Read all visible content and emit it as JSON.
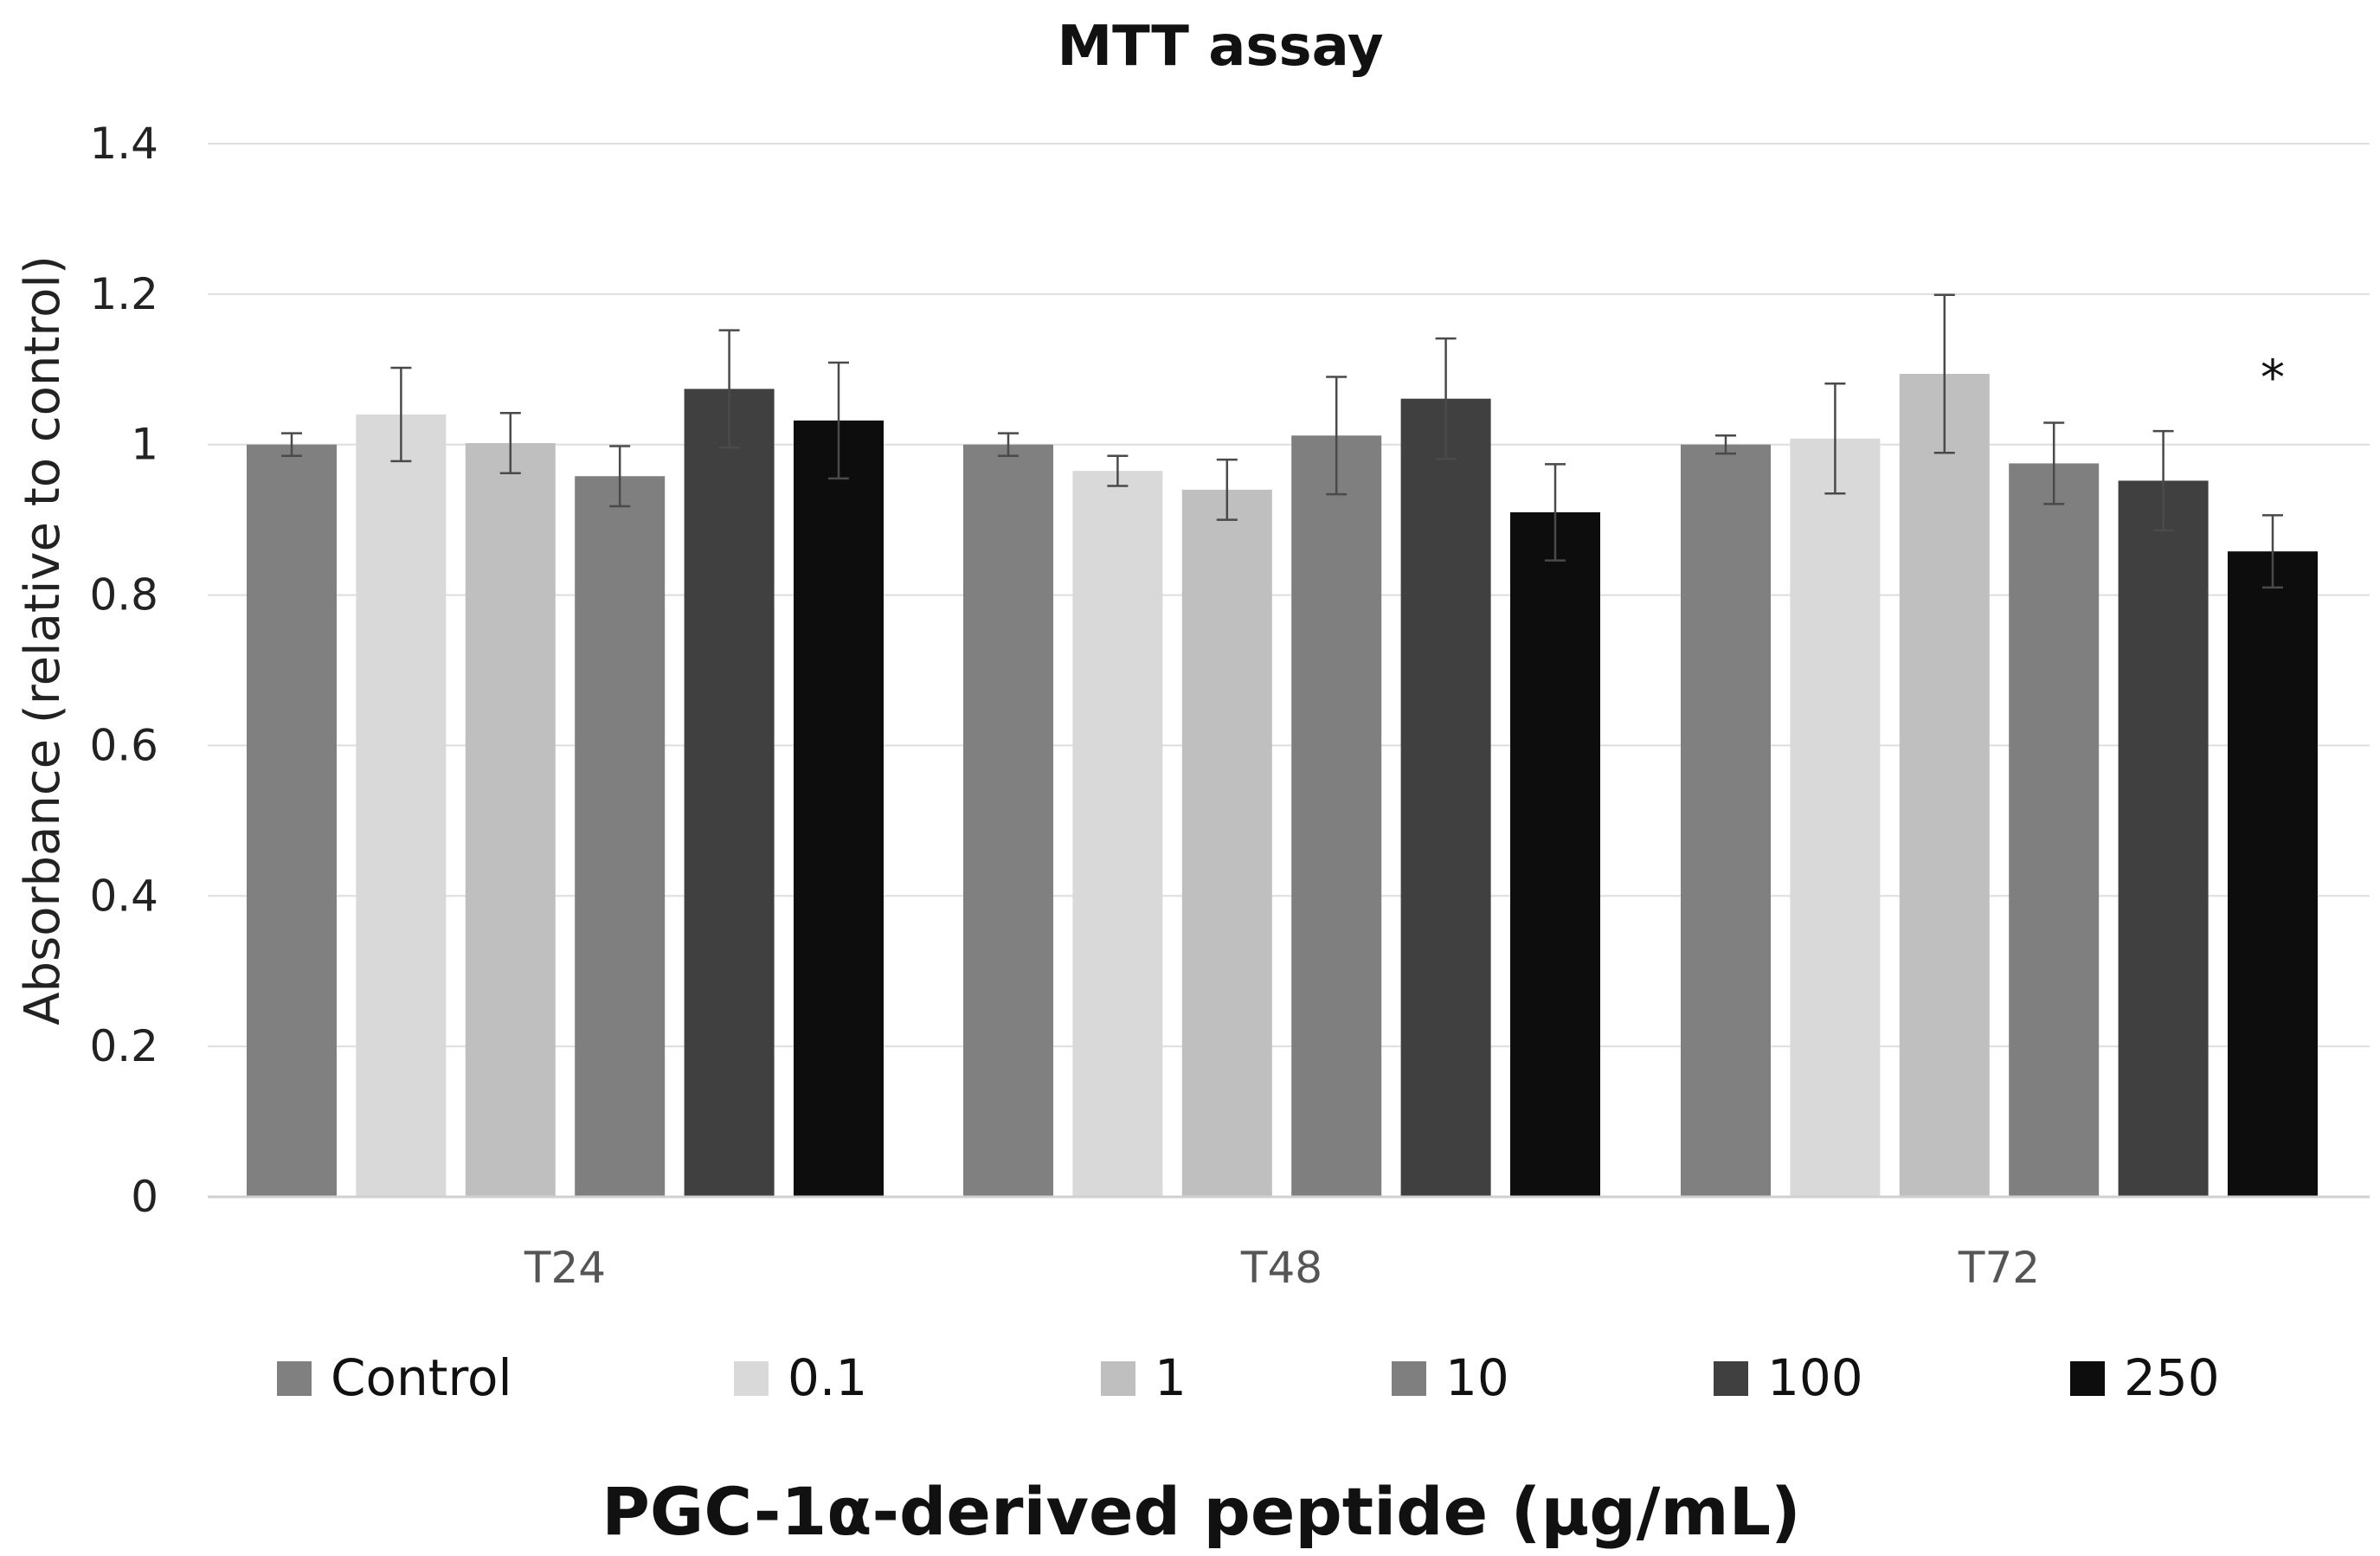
{
  "chart_data": {
    "type": "bar",
    "title": "MTT assay",
    "xlabel": "PGC-1α-derived peptide (µg/mL)",
    "ylabel": "Absorbance (relative to control)",
    "ylim": [
      0,
      1.4
    ],
    "yticks": [
      0,
      0.2,
      0.4,
      0.6,
      0.8,
      1,
      1.2,
      1.4
    ],
    "ytick_labels": [
      "0",
      "0.2",
      "0.4",
      "0.6",
      "0.8",
      "1",
      "1.2",
      "1.4"
    ],
    "grid": true,
    "legend_position": "bottom",
    "categories": [
      "T24",
      "T48",
      "T72"
    ],
    "series": [
      {
        "name": "Control",
        "color": "#808080",
        "values": [
          1.0,
          1.0,
          1.0
        ],
        "errors": [
          0.015,
          0.015,
          0.012
        ]
      },
      {
        "name": "0.1",
        "color": "#d9d9d9",
        "values": [
          1.04,
          0.965,
          1.008
        ],
        "errors": [
          0.062,
          0.02,
          0.073
        ]
      },
      {
        "name": "1",
        "color": "#bfbfbf",
        "values": [
          1.002,
          0.94,
          1.094
        ],
        "errors": [
          0.04,
          0.04,
          0.105
        ]
      },
      {
        "name": "10",
        "color": "#7f7f7f",
        "values": [
          0.958,
          1.012,
          0.975
        ],
        "errors": [
          0.04,
          0.078,
          0.054
        ]
      },
      {
        "name": "100",
        "color": "#404040",
        "values": [
          1.074,
          1.061,
          0.952
        ],
        "errors": [
          0.078,
          0.08,
          0.066
        ]
      },
      {
        "name": "250",
        "color": "#0d0d0d",
        "values": [
          1.032,
          0.91,
          0.858
        ],
        "errors": [
          0.077,
          0.064,
          0.048
        ]
      }
    ],
    "annotations": [
      {
        "text": "*",
        "category": "T72",
        "series": "250"
      }
    ]
  }
}
